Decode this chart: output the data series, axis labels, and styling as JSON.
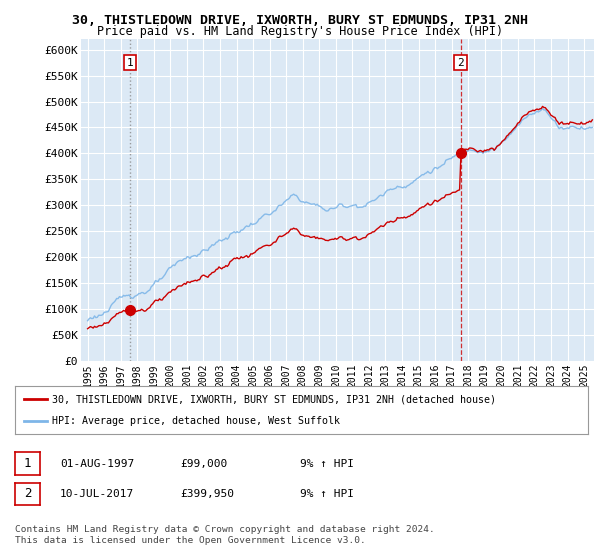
{
  "title": "30, THISTLEDOWN DRIVE, IXWORTH, BURY ST EDMUNDS, IP31 2NH",
  "subtitle": "Price paid vs. HM Land Registry's House Price Index (HPI)",
  "ylim": [
    0,
    620000
  ],
  "yticks": [
    0,
    50000,
    100000,
    150000,
    200000,
    250000,
    300000,
    350000,
    400000,
    450000,
    500000,
    550000,
    600000
  ],
  "ytick_labels": [
    "£0",
    "£50K",
    "£100K",
    "£150K",
    "£200K",
    "£250K",
    "£300K",
    "£350K",
    "£400K",
    "£450K",
    "£500K",
    "£550K",
    "£600K"
  ],
  "hpi_color": "#7eb6e8",
  "price_color": "#cc0000",
  "chart_bg": "#dce9f5",
  "background_color": "#ffffff",
  "grid_color": "#ffffff",
  "sale1_year": 1997.58,
  "sale1_value": 99000,
  "sale2_year": 2017.54,
  "sale2_value": 399950,
  "legend_label1": "30, THISTLEDOWN DRIVE, IXWORTH, BURY ST EDMUNDS, IP31 2NH (detached house)",
  "legend_label2": "HPI: Average price, detached house, West Suffolk",
  "table_row1": [
    "1",
    "01-AUG-1997",
    "£99,000",
    "9% ↑ HPI"
  ],
  "table_row2": [
    "2",
    "10-JUL-2017",
    "£399,950",
    "9% ↑ HPI"
  ],
  "footer": "Contains HM Land Registry data © Crown copyright and database right 2024.\nThis data is licensed under the Open Government Licence v3.0."
}
